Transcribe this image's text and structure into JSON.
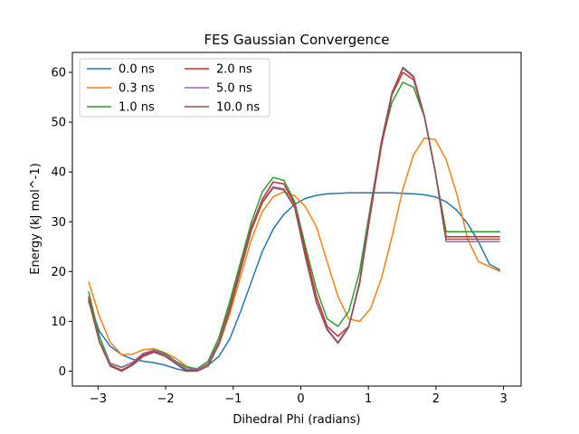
{
  "chart_data": {
    "type": "line",
    "title": "FES Gaussian Convergence",
    "xlabel": "Dihedral Phi (radians)",
    "ylabel": "Energy (kJ mol^-1)",
    "xlim": [
      -3.38,
      3.26
    ],
    "ylim": [
      -3.0,
      64.0
    ],
    "xticks": [
      -3,
      -2,
      -1,
      0,
      1,
      2,
      3
    ],
    "yticks": [
      0,
      10,
      20,
      30,
      40,
      50,
      60
    ],
    "grid": false,
    "legend_placement": "top-left",
    "legend_columns": 2,
    "x": [
      -3.14,
      -2.98,
      -2.82,
      -2.65,
      -2.49,
      -2.33,
      -2.17,
      -2.01,
      -1.85,
      -1.69,
      -1.53,
      -1.37,
      -1.21,
      -1.05,
      -0.89,
      -0.73,
      -0.57,
      -0.41,
      -0.25,
      -0.09,
      0.07,
      0.23,
      0.39,
      0.55,
      0.71,
      0.87,
      1.03,
      1.19,
      1.35,
      1.51,
      1.67,
      1.83,
      1.99,
      2.15,
      2.31,
      2.47,
      2.63,
      2.79,
      2.95
    ],
    "series": [
      {
        "name": "0.0 ns",
        "color": "#1f77b4",
        "values": [
          14.0,
          8.0,
          5.0,
          3.3,
          2.4,
          2.0,
          1.7,
          1.2,
          0.5,
          0.0,
          0.2,
          1.2,
          3.0,
          6.5,
          12.0,
          18.0,
          24.0,
          28.5,
          31.5,
          33.5,
          34.7,
          35.3,
          35.6,
          35.7,
          35.8,
          35.8,
          35.8,
          35.8,
          35.8,
          35.7,
          35.6,
          35.4,
          35.0,
          34.0,
          32.3,
          29.6,
          26.0,
          21.5,
          20.3
        ]
      },
      {
        "name": "0.3 ns",
        "color": "#ff7f0e",
        "values": [
          18.0,
          11.0,
          5.8,
          3.3,
          3.4,
          4.3,
          4.5,
          3.7,
          2.6,
          1.0,
          0.3,
          1.3,
          5.3,
          11.5,
          19.0,
          26.5,
          32.0,
          35.0,
          36.0,
          35.2,
          33.0,
          29.0,
          22.0,
          15.0,
          10.5,
          10.0,
          12.5,
          18.5,
          27.0,
          36.5,
          43.5,
          46.8,
          46.5,
          42.5,
          35.5,
          26.5,
          22.0,
          21.0,
          20.0
        ]
      },
      {
        "name": "1.0 ns",
        "color": "#2ca02c",
        "values": [
          16.0,
          7.0,
          1.6,
          0.8,
          1.7,
          3.5,
          4.3,
          3.6,
          2.0,
          0.8,
          0.5,
          2.0,
          6.8,
          14.0,
          22.0,
          30.0,
          36.0,
          38.9,
          38.3,
          34.0,
          25.0,
          16.5,
          10.5,
          9.0,
          12.0,
          20.0,
          33.0,
          45.5,
          54.0,
          58.0,
          57.0,
          51.0,
          40.0,
          28.0,
          28.0,
          28.0,
          28.0,
          28.0,
          28.0
        ]
      },
      {
        "name": "2.0 ns",
        "color": "#d62728",
        "values": [
          15.0,
          6.0,
          1.2,
          0.2,
          1.4,
          3.3,
          4.0,
          3.3,
          1.8,
          0.2,
          0.3,
          1.5,
          6.0,
          13.0,
          21.0,
          29.0,
          34.5,
          38.0,
          37.6,
          33.5,
          24.0,
          15.0,
          9.0,
          7.0,
          9.0,
          17.5,
          31.5,
          45.0,
          55.5,
          60.0,
          58.5,
          51.0,
          40.0,
          27.0,
          27.0,
          27.0,
          27.0,
          27.0,
          27.0
        ]
      },
      {
        "name": "5.0 ns",
        "color": "#9467bd",
        "values": [
          14.5,
          6.0,
          1.5,
          0.7,
          1.8,
          3.6,
          4.2,
          3.4,
          1.8,
          0.4,
          0.4,
          1.4,
          5.8,
          12.5,
          20.5,
          28.5,
          34.0,
          37.0,
          36.6,
          33.0,
          23.0,
          14.0,
          8.5,
          5.8,
          9.0,
          18.0,
          32.5,
          46.0,
          56.0,
          60.8,
          59.0,
          51.0,
          40.0,
          26.0,
          26.0,
          26.0,
          26.0,
          26.0,
          26.0
        ]
      },
      {
        "name": "10.0 ns",
        "color": "#8c564b",
        "values": [
          14.3,
          5.8,
          1.0,
          0.0,
          1.2,
          3.0,
          3.8,
          3.0,
          1.5,
          0.0,
          0.0,
          1.0,
          5.5,
          12.2,
          20.3,
          28.3,
          33.8,
          36.8,
          36.4,
          32.8,
          22.8,
          13.8,
          8.3,
          5.6,
          8.8,
          17.8,
          32.2,
          45.8,
          55.8,
          61.0,
          59.2,
          51.2,
          40.2,
          26.5,
          26.5,
          26.5,
          26.5,
          26.5,
          26.5
        ]
      }
    ]
  }
}
